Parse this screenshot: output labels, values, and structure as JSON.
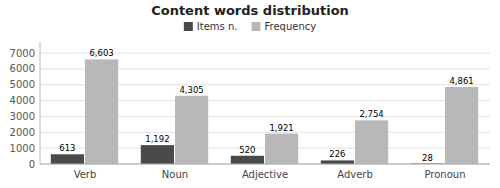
{
  "chart_data": {
    "type": "bar",
    "title": "Content words distribution",
    "categories": [
      "Verb",
      "Noun",
      "Adjective",
      "Adverb",
      "Pronoun"
    ],
    "series": [
      {
        "name": "Items n.",
        "color": "#4a4a4a",
        "values": [
          613,
          1192,
          520,
          226,
          28
        ],
        "value_labels": [
          "613",
          "1,192",
          "520",
          "226",
          "28"
        ]
      },
      {
        "name": "Frequency",
        "color": "#b8b8b8",
        "values": [
          6603,
          4305,
          1921,
          2754,
          4861
        ],
        "value_labels": [
          "6,603",
          "4,305",
          "1,921",
          "2,754",
          "4,861"
        ]
      }
    ],
    "ylim": [
      0,
      7700
    ],
    "yticks": [
      0,
      1000,
      2000,
      3000,
      4000,
      5000,
      6000,
      7000
    ],
    "grid": true,
    "legend": "top",
    "data_labels": true
  }
}
